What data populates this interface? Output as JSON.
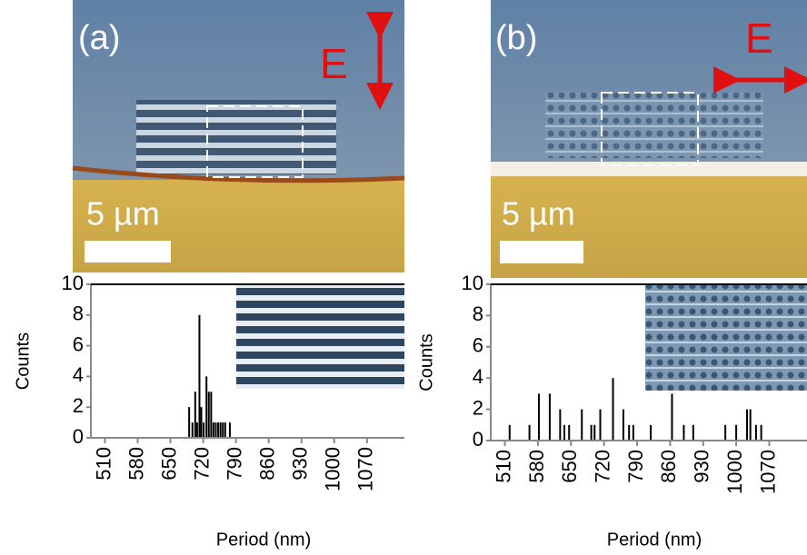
{
  "panels": [
    {
      "label": "(a)",
      "field": "E",
      "scale_bar": "5 µm"
    },
    {
      "label": "(b)",
      "field": "E",
      "scale_bar": "5 µm"
    }
  ],
  "chart_data": [
    {
      "type": "bar",
      "color": "#000000",
      "xlabel": "Period (nm)",
      "ylabel": "Counts",
      "x": [
        690,
        697,
        703,
        707,
        712,
        716,
        721,
        727,
        732,
        737,
        742,
        747,
        752,
        757,
        762,
        767,
        777
      ],
      "values": [
        2,
        1,
        3,
        1,
        8,
        2,
        1,
        4,
        3,
        3,
        1,
        1,
        1,
        1,
        1,
        1,
        1
      ],
      "xlim": [
        480,
        1150
      ],
      "ylim": [
        0,
        10
      ],
      "xticks": [
        510,
        580,
        650,
        720,
        790,
        860,
        930,
        1000,
        1070
      ],
      "yticks": [
        0,
        2,
        4,
        6,
        8,
        10
      ]
    },
    {
      "type": "bar",
      "color": "#000000",
      "xlabel": "Period (nm)",
      "ylabel": "Counts",
      "x": [
        520,
        562,
        582,
        605,
        627,
        636,
        646,
        673,
        693,
        700,
        712,
        739,
        761,
        773,
        782,
        819,
        864,
        889,
        909,
        977,
        1000,
        1023,
        1030,
        1042,
        1053
      ],
      "values": [
        1,
        1,
        3,
        3,
        2,
        1,
        1,
        2,
        1,
        1,
        2,
        4,
        2,
        1,
        1,
        1,
        3,
        1,
        1,
        1,
        1,
        2,
        2,
        1,
        1
      ],
      "xlim": [
        480,
        1150
      ],
      "ylim": [
        0,
        10
      ],
      "xticks": [
        510,
        580,
        650,
        720,
        790,
        860,
        930,
        1000,
        1070
      ],
      "yticks": [
        0,
        2,
        4,
        6,
        8,
        10
      ]
    }
  ]
}
